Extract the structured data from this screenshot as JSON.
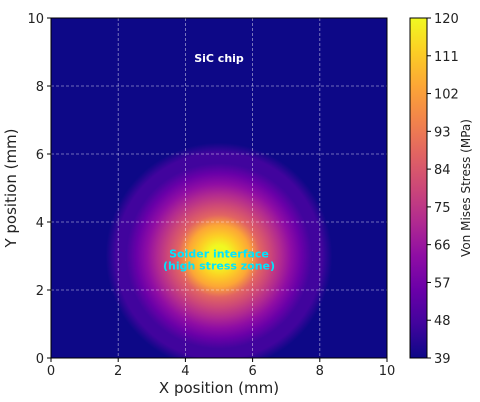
{
  "chart_data": {
    "type": "heatmap",
    "title": "",
    "xlabel": "X position (mm)",
    "ylabel": "Y position (mm)",
    "xlim": [
      0,
      10
    ],
    "ylim": [
      0,
      10
    ],
    "x_ticks": [
      0,
      2,
      4,
      6,
      8,
      10
    ],
    "y_ticks": [
      0,
      2,
      4,
      6,
      8,
      10
    ],
    "grid": true,
    "colormap": "plasma",
    "colorbar": {
      "label": "Von Mises Stress (MPa)",
      "min": 39,
      "max": 120,
      "ticks": [
        39,
        48,
        57,
        66,
        75,
        84,
        93,
        102,
        111,
        120
      ]
    },
    "field": {
      "base_value": 39,
      "peak_value": 120,
      "peak_center": [
        5,
        3
      ],
      "falloff_radius_mm": 1.3
    },
    "annotations": [
      {
        "text": "SiC chip",
        "x": 5,
        "y": 8.7,
        "color": "#ffffff"
      },
      {
        "text": "Solder interface",
        "x": 5,
        "y": 2.95,
        "color": "#00e5ff"
      },
      {
        "text": "(high stress zone)",
        "x": 5,
        "y": 2.6,
        "color": "#00e5ff"
      }
    ]
  }
}
